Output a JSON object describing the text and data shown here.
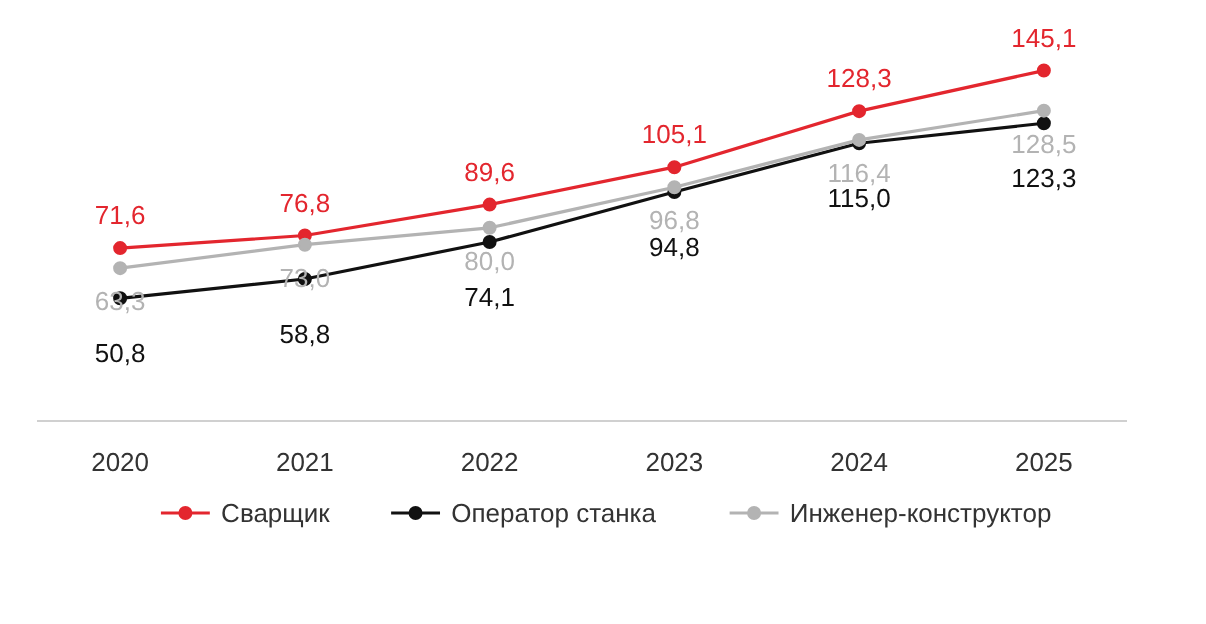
{
  "chart_data": {
    "type": "line",
    "categories": [
      "2020",
      "2021",
      "2022",
      "2023",
      "2024",
      "2025"
    ],
    "series": [
      {
        "name": "Сварщик",
        "color": "#e3262e",
        "values": [
          71.6,
          76.8,
          89.6,
          105.1,
          128.3,
          145.1
        ],
        "value_labels": [
          "71,6",
          "76,8",
          "89,6",
          "105,1",
          "128,3",
          "145,1"
        ]
      },
      {
        "name": "Оператор станка",
        "color": "#111111",
        "values": [
          50.8,
          58.8,
          74.1,
          94.8,
          115.0,
          123.3
        ],
        "value_labels": [
          "50,8",
          "58,8",
          "74,1",
          "94,8",
          "115,0",
          "123,3"
        ]
      },
      {
        "name": "Инженер-конструктор",
        "color": "#b3b3b3",
        "values": [
          63.3,
          73.0,
          80.0,
          96.8,
          116.4,
          128.5
        ],
        "value_labels": [
          "63,3",
          "73,0",
          "80,0",
          "96,8",
          "116,4",
          "128,5"
        ]
      }
    ],
    "legend": "bottom",
    "marker": "circle"
  }
}
